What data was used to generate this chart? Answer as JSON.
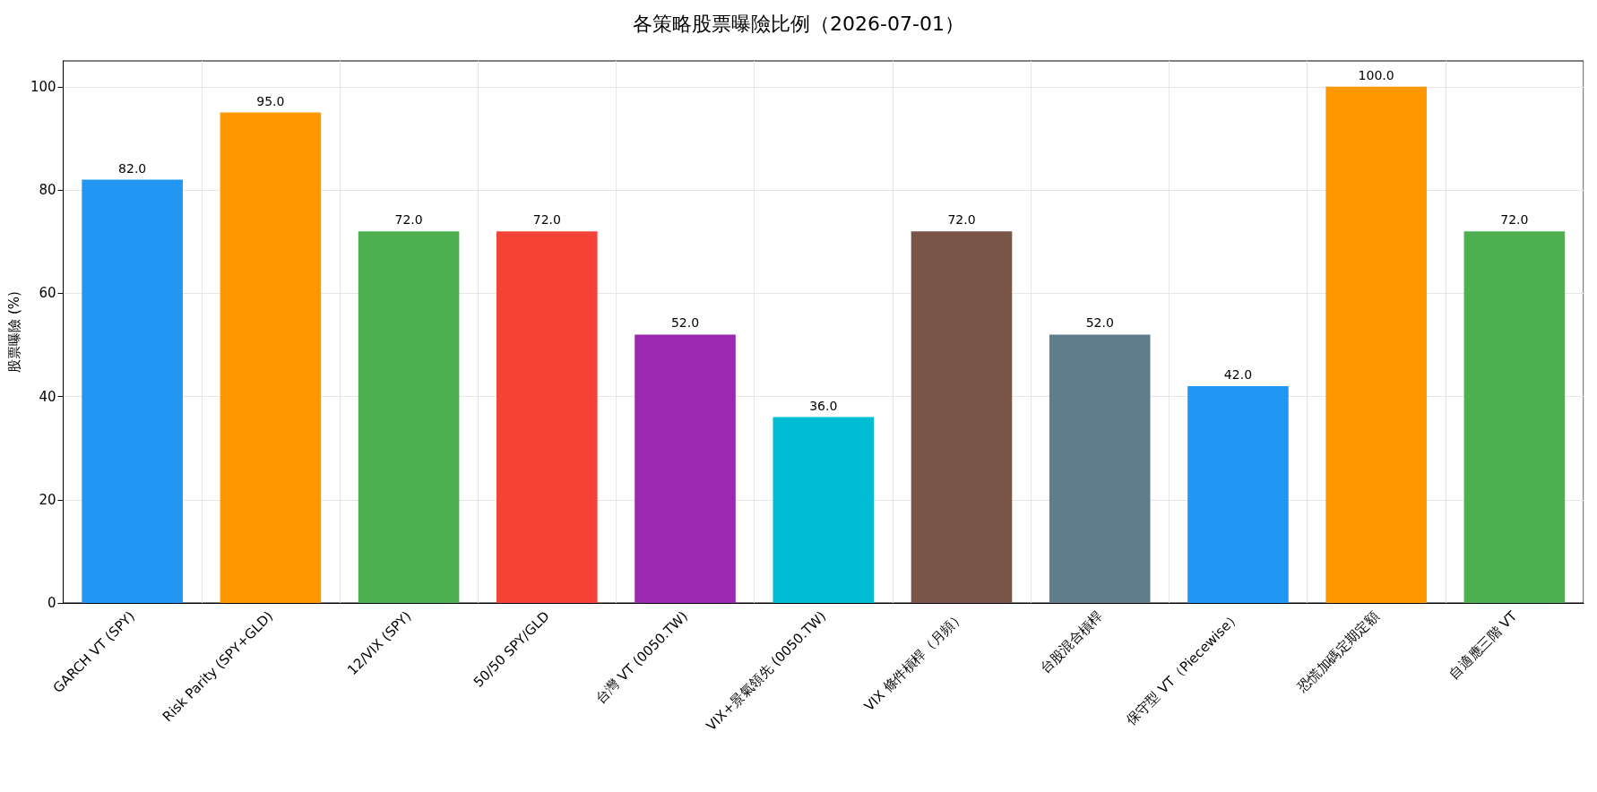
{
  "chart_data": {
    "type": "bar",
    "title": "各策略股票曝險比例（2026-07-01）",
    "ylabel": "股票曝險 (%)",
    "categories": [
      "GARCH VT (SPY)",
      "Risk Parity (SPY+GLD)",
      "12/VIX (SPY)",
      "50/50 SPY/GLD",
      "台灣 VT (0050.TW)",
      "VIX+景氣領先 (0050.TW)",
      "VIX 條件槓桿（月頻）",
      "台股混合槓桿",
      "保守型 VT（Piecewise）",
      "恐慌加碼定期定額",
      "自適應三階 VT"
    ],
    "values": [
      82,
      95,
      72,
      72,
      52,
      36,
      72,
      52,
      42,
      100,
      72
    ],
    "value_labels": [
      "82.0",
      "95.0",
      "72.0",
      "72.0",
      "52.0",
      "36.0",
      "72.0",
      "52.0",
      "42.0",
      "100.0",
      "72.0"
    ],
    "colors": [
      "#2196f3",
      "#ff9800",
      "#4caf50",
      "#f44336",
      "#9c27b0",
      "#00bcd4",
      "#795548",
      "#607d8b",
      "#2196f3",
      "#ff9800",
      "#4caf50"
    ],
    "ylim": [
      0,
      105
    ],
    "yticks": [
      0,
      20,
      40,
      60,
      80,
      100
    ],
    "grid": true
  }
}
